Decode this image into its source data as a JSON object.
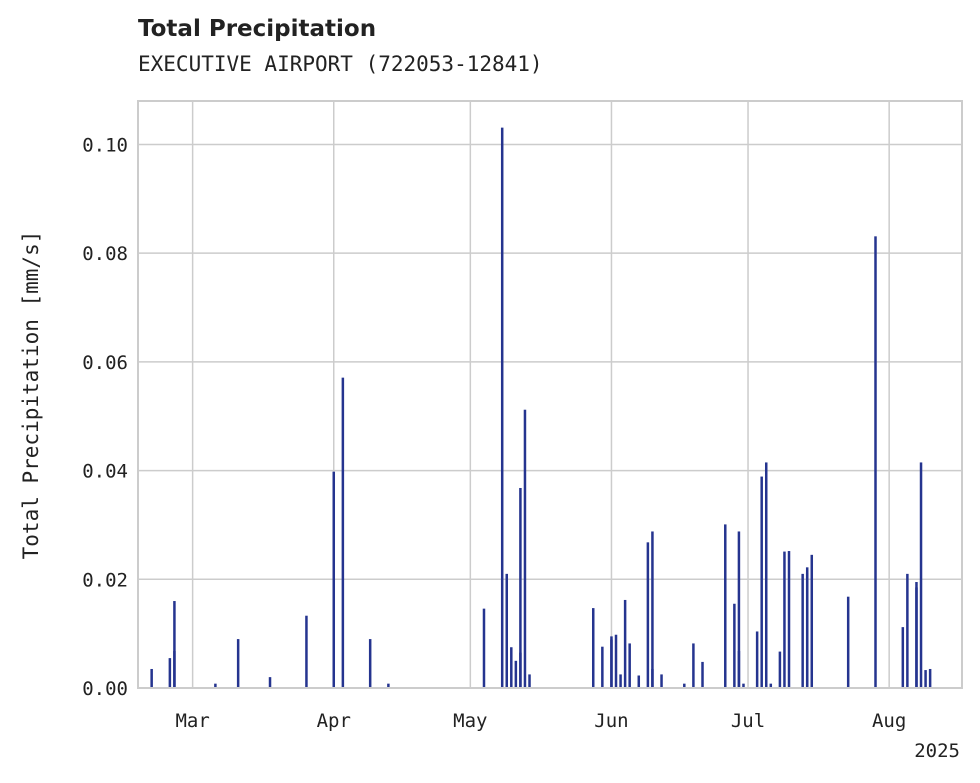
{
  "header": {
    "title": "Total Precipitation",
    "subtitle": "EXECUTIVE AIRPORT (722053-12841)"
  },
  "chart_data": {
    "type": "bar",
    "title": "Total Precipitation",
    "subtitle": "EXECUTIVE AIRPORT (722053-12841)",
    "xlabel": "",
    "ylabel": "Total Precipitation [mm/s]",
    "x_range": [
      "2025-02-17",
      "2025-08-17"
    ],
    "x_ticks": [
      {
        "date": "2025-03-01",
        "label": "Mar"
      },
      {
        "date": "2025-04-01",
        "label": "Apr"
      },
      {
        "date": "2025-05-01",
        "label": "May"
      },
      {
        "date": "2025-06-01",
        "label": "Jun"
      },
      {
        "date": "2025-07-01",
        "label": "Jul"
      },
      {
        "date": "2025-08-01",
        "label": "Aug"
      }
    ],
    "x_year_label": "2025",
    "ylim": [
      0,
      0.108
    ],
    "y_ticks": [
      0.0,
      0.02,
      0.04,
      0.06,
      0.08,
      0.1
    ],
    "y_tick_labels": [
      "0.00",
      "0.02",
      "0.04",
      "0.06",
      "0.08",
      "0.10"
    ],
    "grid": true,
    "color": "#25348f",
    "x": [
      "2025-02-20",
      "2025-02-24",
      "2025-02-25",
      "2025-02-25",
      "2025-03-06",
      "2025-03-11",
      "2025-03-18",
      "2025-03-26",
      "2025-04-01",
      "2025-04-03",
      "2025-04-09",
      "2025-04-13",
      "2025-05-04",
      "2025-05-08",
      "2025-05-09",
      "2025-05-10",
      "2025-05-11",
      "2025-05-12",
      "2025-05-12",
      "2025-05-13",
      "2025-05-14",
      "2025-05-28",
      "2025-05-30",
      "2025-06-01",
      "2025-06-01",
      "2025-06-02",
      "2025-06-03",
      "2025-06-04",
      "2025-06-05",
      "2025-06-07",
      "2025-06-09",
      "2025-06-10",
      "2025-06-10",
      "2025-06-12",
      "2025-06-17",
      "2025-06-19",
      "2025-06-21",
      "2025-06-26",
      "2025-06-28",
      "2025-06-29",
      "2025-06-29",
      "2025-06-30",
      "2025-07-03",
      "2025-07-04",
      "2025-07-05",
      "2025-07-06",
      "2025-07-08",
      "2025-07-09",
      "2025-07-10",
      "2025-07-13",
      "2025-07-14",
      "2025-07-14",
      "2025-07-15",
      "2025-07-23",
      "2025-07-29",
      "2025-08-04",
      "2025-08-05",
      "2025-08-07",
      "2025-08-07",
      "2025-08-08",
      "2025-08-09",
      "2025-08-10"
    ],
    "values": [
      0.0035,
      0.0055,
      0.016,
      0.0068,
      0.0008,
      0.009,
      0.002,
      0.0133,
      0.0398,
      0.0571,
      0.009,
      0.0008,
      0.0146,
      0.1031,
      0.021,
      0.0075,
      0.005,
      0.0065,
      0.0368,
      0.0512,
      0.0025,
      0.0147,
      0.0076,
      0.0089,
      0.0095,
      0.0098,
      0.0025,
      0.0162,
      0.0082,
      0.0023,
      0.0268,
      0.0288,
      0.0035,
      0.0025,
      0.0008,
      0.0082,
      0.0048,
      0.0301,
      0.0155,
      0.0068,
      0.0288,
      0.0008,
      0.0104,
      0.0389,
      0.0415,
      0.0008,
      0.0067,
      0.0251,
      0.0252,
      0.021,
      0.0212,
      0.0222,
      0.0245,
      0.0168,
      0.0831,
      0.0112,
      0.021,
      0.0185,
      0.0195,
      0.0415,
      0.0033,
      0.0035
    ]
  }
}
